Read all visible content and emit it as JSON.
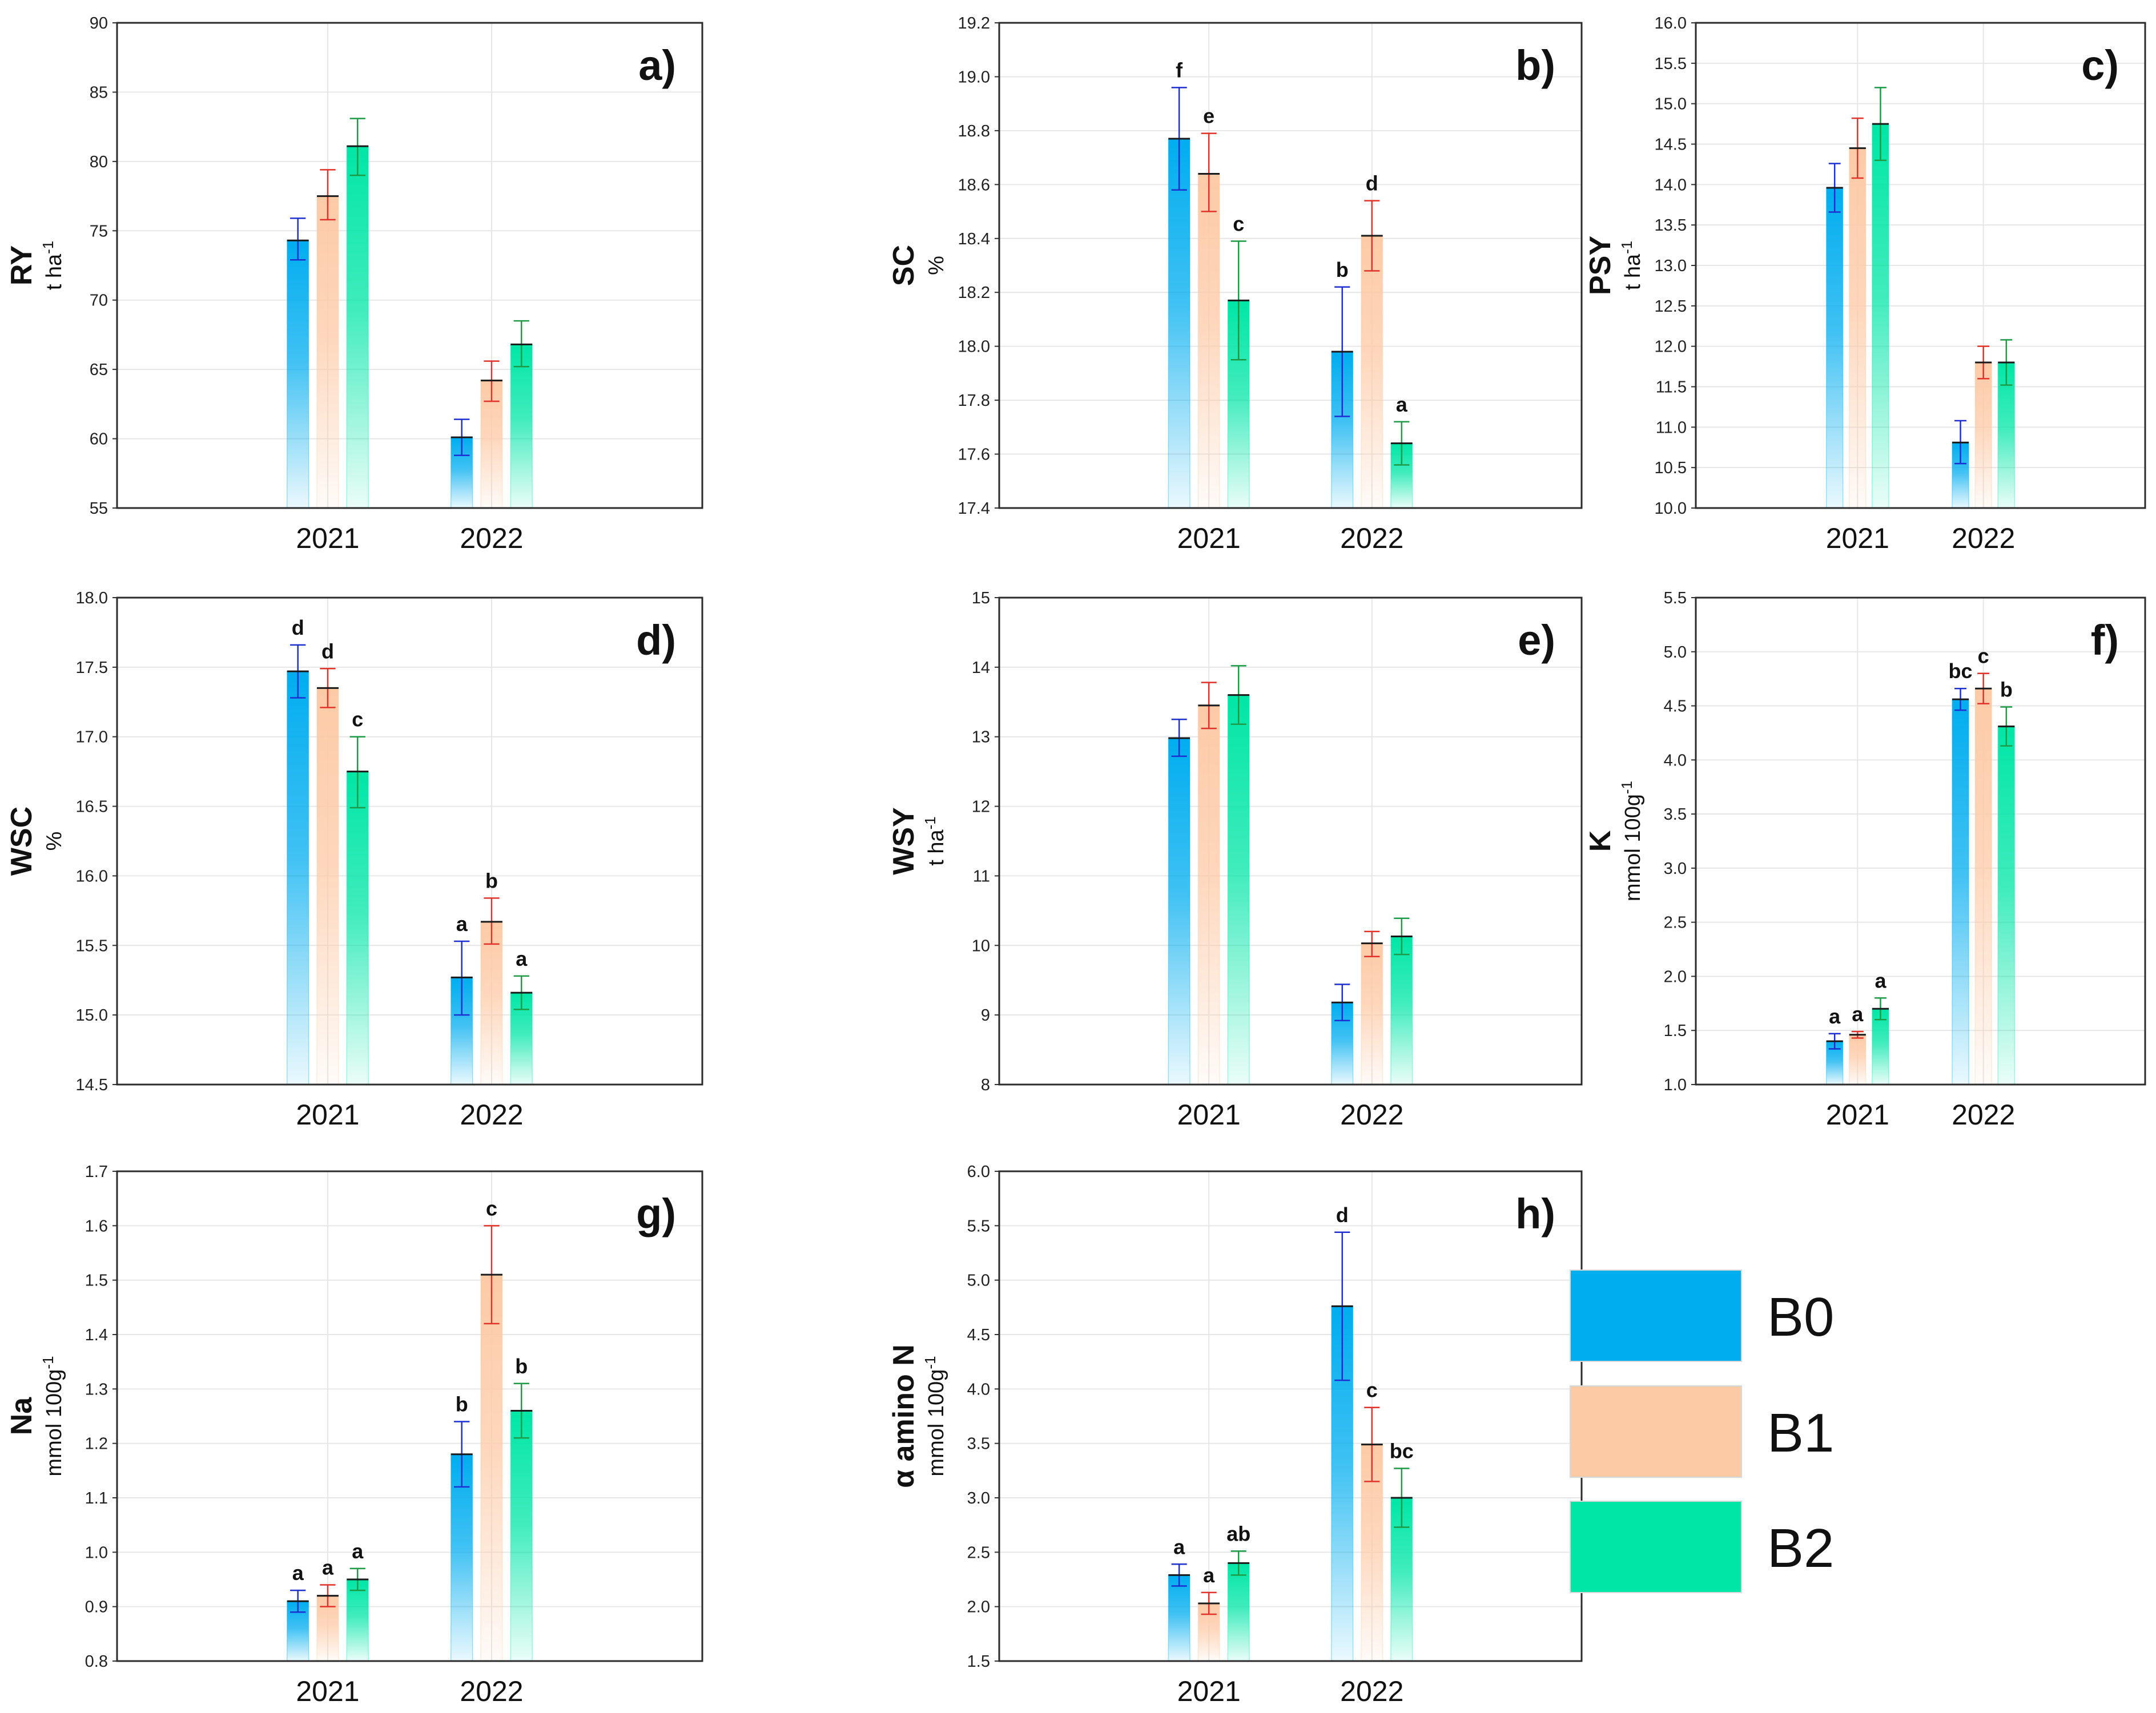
{
  "series_colors": {
    "B0": "#00adef",
    "B1": "#fdcaa6",
    "B2": "#00e6a6"
  },
  "legend": [
    {
      "name": "B0",
      "color": "#00adef"
    },
    {
      "name": "B1",
      "color": "#fdcaa6"
    },
    {
      "name": "B2",
      "color": "#00e6a6"
    }
  ],
  "chart_data": [
    {
      "type": "bar",
      "panel": "a)",
      "ylabel": "RY",
      "yunit": "t ha",
      "yunit_sup": "-1",
      "categories": [
        "2021",
        "2022"
      ],
      "ylim": [
        55,
        90
      ],
      "yticks": [
        55,
        60,
        65,
        70,
        75,
        80,
        85,
        90
      ],
      "decimals": 0,
      "series": [
        {
          "name": "B0",
          "values": [
            74.3,
            60.1
          ],
          "err_low": [
            72.9,
            58.8
          ],
          "err_high": [
            75.9,
            61.4
          ],
          "sig": [
            "",
            ""
          ]
        },
        {
          "name": "B1",
          "values": [
            77.5,
            64.2
          ],
          "err_low": [
            75.8,
            62.7
          ],
          "err_high": [
            79.4,
            65.6
          ],
          "sig": [
            "",
            ""
          ]
        },
        {
          "name": "B2",
          "values": [
            81.1,
            66.8
          ],
          "err_low": [
            79.0,
            65.2
          ],
          "err_high": [
            83.1,
            68.5
          ],
          "sig": [
            "",
            ""
          ]
        }
      ]
    },
    {
      "type": "bar",
      "panel": "b)",
      "ylabel": "SC",
      "yunit": "%",
      "yunit_sup": "",
      "categories": [
        "2021",
        "2022"
      ],
      "ylim": [
        17.4,
        19.2
      ],
      "yticks": [
        17.4,
        17.6,
        17.8,
        18.0,
        18.2,
        18.4,
        18.6,
        18.8,
        19.0,
        19.2
      ],
      "decimals": 1,
      "series": [
        {
          "name": "B0",
          "values": [
            18.77,
            17.98
          ],
          "err_low": [
            18.58,
            17.74
          ],
          "err_high": [
            18.96,
            18.22
          ],
          "sig": [
            "f",
            "b"
          ]
        },
        {
          "name": "B1",
          "values": [
            18.64,
            18.41
          ],
          "err_low": [
            18.5,
            18.28
          ],
          "err_high": [
            18.79,
            18.54
          ],
          "sig": [
            "e",
            "d"
          ]
        },
        {
          "name": "B2",
          "values": [
            18.17,
            17.64
          ],
          "err_low": [
            17.95,
            17.56
          ],
          "err_high": [
            18.39,
            17.72
          ],
          "sig": [
            "c",
            "a"
          ]
        }
      ]
    },
    {
      "type": "bar",
      "panel": "c)",
      "ylabel": "PSY",
      "yunit": "t ha",
      "yunit_sup": "-1",
      "categories": [
        "2021",
        "2022"
      ],
      "ylim": [
        10,
        16
      ],
      "yticks": [
        10.0,
        10.5,
        11.0,
        11.5,
        12.0,
        12.5,
        13.0,
        13.5,
        14.0,
        14.5,
        15.0,
        15.5,
        16.0
      ],
      "decimals": 1,
      "series": [
        {
          "name": "B0",
          "values": [
            13.96,
            10.81
          ],
          "err_low": [
            13.66,
            10.55
          ],
          "err_high": [
            14.26,
            11.08
          ],
          "sig": [
            "",
            ""
          ]
        },
        {
          "name": "B1",
          "values": [
            14.45,
            11.8
          ],
          "err_low": [
            14.08,
            11.6
          ],
          "err_high": [
            14.82,
            12.0
          ],
          "sig": [
            "",
            ""
          ]
        },
        {
          "name": "B2",
          "values": [
            14.75,
            11.8
          ],
          "err_low": [
            14.3,
            11.52
          ],
          "err_high": [
            15.2,
            12.08
          ],
          "sig": [
            "",
            ""
          ]
        }
      ]
    },
    {
      "type": "bar",
      "panel": "d)",
      "ylabel": "WSC",
      "yunit": "%",
      "yunit_sup": "",
      "categories": [
        "2021",
        "2022"
      ],
      "ylim": [
        14.5,
        18
      ],
      "yticks": [
        14.5,
        15.0,
        15.5,
        16.0,
        16.5,
        17.0,
        17.5,
        18.0
      ],
      "decimals": 1,
      "series": [
        {
          "name": "B0",
          "values": [
            17.47,
            15.27
          ],
          "err_low": [
            17.28,
            15.0
          ],
          "err_high": [
            17.66,
            15.53
          ],
          "sig": [
            "d",
            "a"
          ]
        },
        {
          "name": "B1",
          "values": [
            17.35,
            15.67
          ],
          "err_low": [
            17.21,
            15.51
          ],
          "err_high": [
            17.49,
            15.84
          ],
          "sig": [
            "d",
            "b"
          ]
        },
        {
          "name": "B2",
          "values": [
            16.75,
            15.16
          ],
          "err_low": [
            16.49,
            15.04
          ],
          "err_high": [
            17.0,
            15.28
          ],
          "sig": [
            "c",
            "a"
          ]
        }
      ]
    },
    {
      "type": "bar",
      "panel": "e)",
      "ylabel": "WSY",
      "yunit": "t ha",
      "yunit_sup": "-1",
      "categories": [
        "2021",
        "2022"
      ],
      "ylim": [
        8,
        15
      ],
      "yticks": [
        8,
        9,
        10,
        11,
        12,
        13,
        14,
        15
      ],
      "decimals": 0,
      "series": [
        {
          "name": "B0",
          "values": [
            12.98,
            9.18
          ],
          "err_low": [
            12.72,
            8.92
          ],
          "err_high": [
            13.25,
            9.44
          ],
          "sig": [
            "",
            ""
          ]
        },
        {
          "name": "B1",
          "values": [
            13.45,
            10.03
          ],
          "err_low": [
            13.12,
            9.84
          ],
          "err_high": [
            13.78,
            10.2
          ],
          "sig": [
            "",
            ""
          ]
        },
        {
          "name": "B2",
          "values": [
            13.6,
            10.13
          ],
          "err_low": [
            13.18,
            9.87
          ],
          "err_high": [
            14.02,
            10.39
          ],
          "sig": [
            "",
            ""
          ]
        }
      ]
    },
    {
      "type": "bar",
      "panel": "f)",
      "ylabel": "K",
      "yunit": "mmol 100g",
      "yunit_sup": "-1",
      "categories": [
        "2021",
        "2022"
      ],
      "ylim": [
        1,
        5.5
      ],
      "yticks": [
        1.0,
        1.5,
        2.0,
        2.5,
        3.0,
        3.5,
        4.0,
        4.5,
        5.0,
        5.5
      ],
      "decimals": 1,
      "series": [
        {
          "name": "B0",
          "values": [
            1.4,
            4.56
          ],
          "err_low": [
            1.33,
            4.46
          ],
          "err_high": [
            1.47,
            4.66
          ],
          "sig": [
            "a",
            "bc"
          ]
        },
        {
          "name": "B1",
          "values": [
            1.46,
            4.66
          ],
          "err_low": [
            1.43,
            4.52
          ],
          "err_high": [
            1.49,
            4.8
          ],
          "sig": [
            "a",
            "c"
          ]
        },
        {
          "name": "B2",
          "values": [
            1.7,
            4.31
          ],
          "err_low": [
            1.6,
            4.13
          ],
          "err_high": [
            1.8,
            4.49
          ],
          "sig": [
            "a",
            "b"
          ]
        }
      ]
    },
    {
      "type": "bar",
      "panel": "g)",
      "ylabel": "Na",
      "yunit": "mmol 100g",
      "yunit_sup": "-1",
      "categories": [
        "2021",
        "2022"
      ],
      "ylim": [
        0.8,
        1.7
      ],
      "yticks": [
        0.8,
        0.9,
        1.0,
        1.1,
        1.2,
        1.3,
        1.4,
        1.5,
        1.6,
        1.7
      ],
      "decimals": 1,
      "series": [
        {
          "name": "B0",
          "values": [
            0.91,
            1.18
          ],
          "err_low": [
            0.89,
            1.12
          ],
          "err_high": [
            0.93,
            1.24
          ],
          "sig": [
            "a",
            "b"
          ]
        },
        {
          "name": "B1",
          "values": [
            0.92,
            1.51
          ],
          "err_low": [
            0.9,
            1.42
          ],
          "err_high": [
            0.94,
            1.6
          ],
          "sig": [
            "a",
            "c"
          ]
        },
        {
          "name": "B2",
          "values": [
            0.95,
            1.26
          ],
          "err_low": [
            0.93,
            1.21
          ],
          "err_high": [
            0.97,
            1.31
          ],
          "sig": [
            "a",
            "b"
          ]
        }
      ]
    },
    {
      "type": "bar",
      "panel": "h)",
      "ylabel": "α amino N",
      "yunit": "mmol 100g",
      "yunit_sup": "-1",
      "categories": [
        "2021",
        "2022"
      ],
      "ylim": [
        1.5,
        6
      ],
      "yticks": [
        1.5,
        2.0,
        2.5,
        3.0,
        3.5,
        4.0,
        4.5,
        5.0,
        5.5,
        6.0
      ],
      "decimals": 1,
      "series": [
        {
          "name": "B0",
          "values": [
            2.29,
            4.76
          ],
          "err_low": [
            2.19,
            4.08
          ],
          "err_high": [
            2.39,
            5.44
          ],
          "sig": [
            "a",
            "d"
          ]
        },
        {
          "name": "B1",
          "values": [
            2.03,
            3.49
          ],
          "err_low": [
            1.93,
            3.15
          ],
          "err_high": [
            2.13,
            3.83
          ],
          "sig": [
            "a",
            "c"
          ]
        },
        {
          "name": "B2",
          "values": [
            2.4,
            3.0
          ],
          "err_low": [
            2.29,
            2.73
          ],
          "err_high": [
            2.51,
            3.27
          ],
          "sig": [
            "ab",
            "bc"
          ]
        }
      ]
    }
  ]
}
